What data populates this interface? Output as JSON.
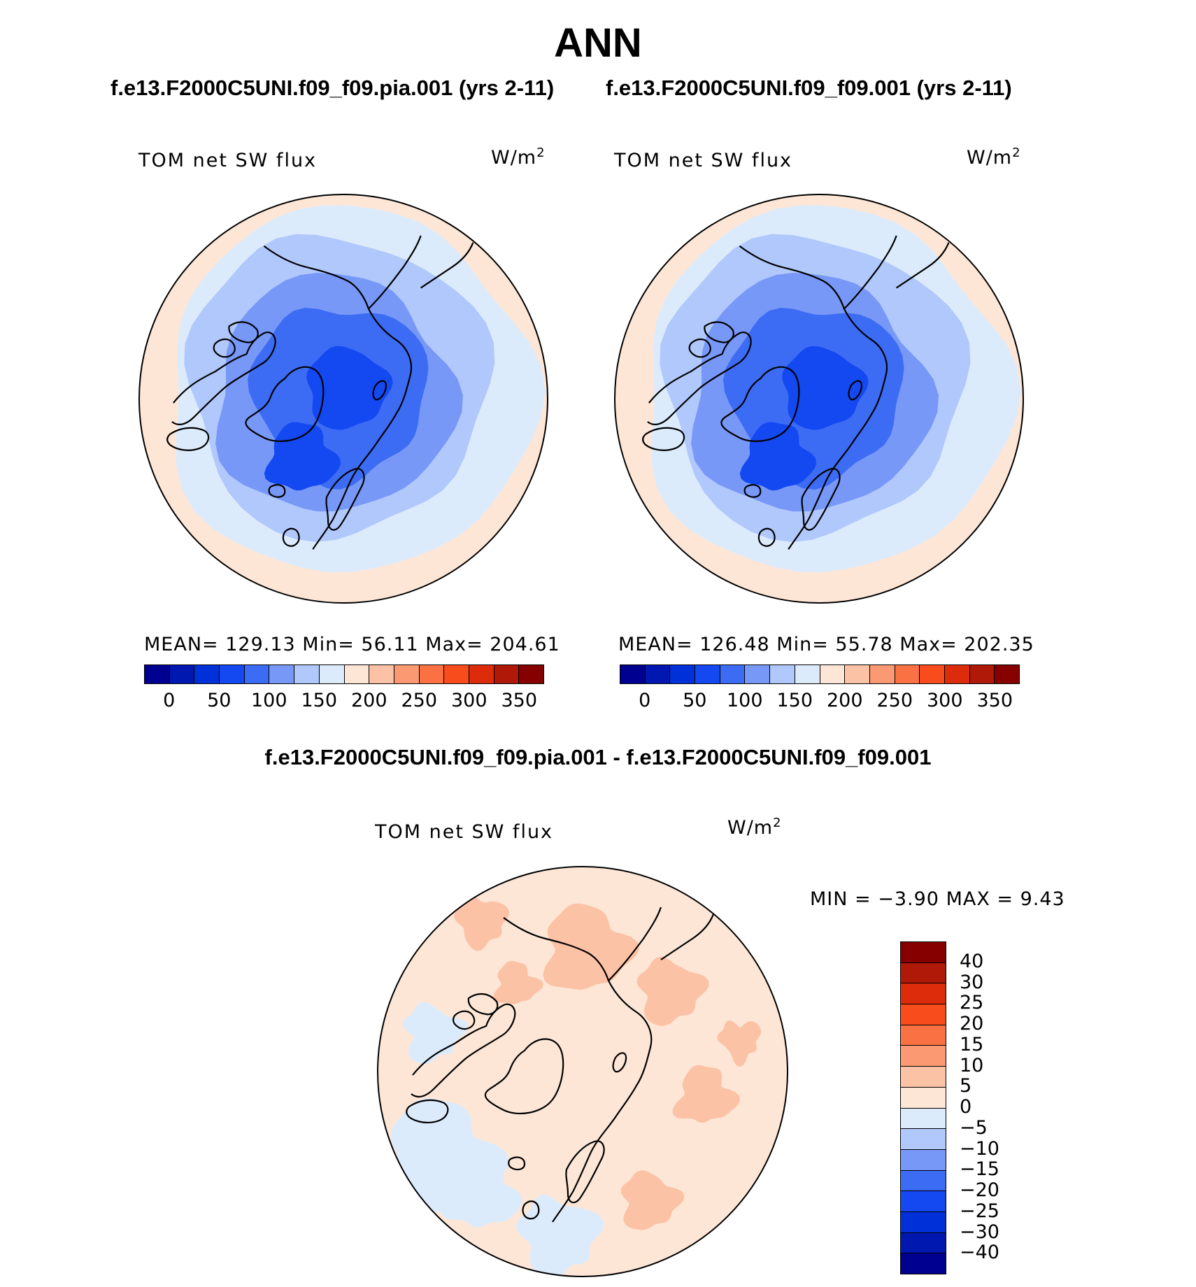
{
  "title": "ANN",
  "panels": {
    "left": {
      "run": "f.e13.F2000C5UNI.f09_f09.pia.001 (yrs 2-11)",
      "variable": "TOM net SW flux",
      "units": "W/m",
      "units_sup": "2",
      "stats": "MEAN= 129.13   Min=   56.11   Max= 204.61",
      "mean": 129.13,
      "min": 56.11,
      "max": 204.61
    },
    "right": {
      "run": "f.e13.F2000C5UNI.f09_f09.001 (yrs 2-11)",
      "variable": "TOM net SW flux",
      "units": "W/m",
      "units_sup": "2",
      "stats": "MEAN= 126.48   Min=   55.78   Max= 202.35",
      "mean": 126.48,
      "min": 55.78,
      "max": 202.35
    },
    "difference": {
      "title": "f.e13.F2000C5UNI.f09_f09.pia.001 - f.e13.F2000C5UNI.f09_f09.001",
      "variable": "TOM net SW flux",
      "units": "W/m",
      "units_sup": "2",
      "stats": "MIN =    −3.90 MAX =     9.43",
      "min": -3.9,
      "max": 9.43
    }
  },
  "colorbar_abs": {
    "tick_labels": [
      "0",
      "50",
      "100",
      "150",
      "200",
      "250",
      "300",
      "350"
    ],
    "colors": [
      "#000090",
      "#0018b0",
      "#0030d8",
      "#1448f0",
      "#3c6cf4",
      "#7898f8",
      "#b0c8fc",
      "#dcebfc",
      "#fde6d6",
      "#fcc2a6",
      "#fb9a72",
      "#fa7244",
      "#f84c1c",
      "#dc2c0c",
      "#b01808",
      "#860000"
    ]
  },
  "colorbar_diff": {
    "tick_labels": [
      "40",
      "30",
      "25",
      "20",
      "15",
      "10",
      "5",
      "0",
      "−5",
      "−10",
      "−15",
      "−20",
      "−25",
      "−30",
      "−40"
    ],
    "colors": [
      "#860000",
      "#b01808",
      "#dc2c0c",
      "#f84c1c",
      "#fa7244",
      "#fb9a72",
      "#fcc2a6",
      "#fde6d6",
      "#dcebfc",
      "#b0c8fc",
      "#7898f8",
      "#3c6cf4",
      "#1448f0",
      "#0030d8",
      "#0018b0",
      "#000090"
    ]
  },
  "map_colors": {
    "land_outline": "#000000",
    "abs_outer": "#fde6d6",
    "abs_l1": "#dcebfc",
    "abs_l2": "#b0c8fc",
    "abs_l3": "#7898f8",
    "abs_l4": "#3c6cf4",
    "abs_l5": "#1448f0",
    "diff_base": "#fde6d6",
    "diff_pos": "#fcc2a6",
    "diff_neg": "#dcebfc"
  }
}
